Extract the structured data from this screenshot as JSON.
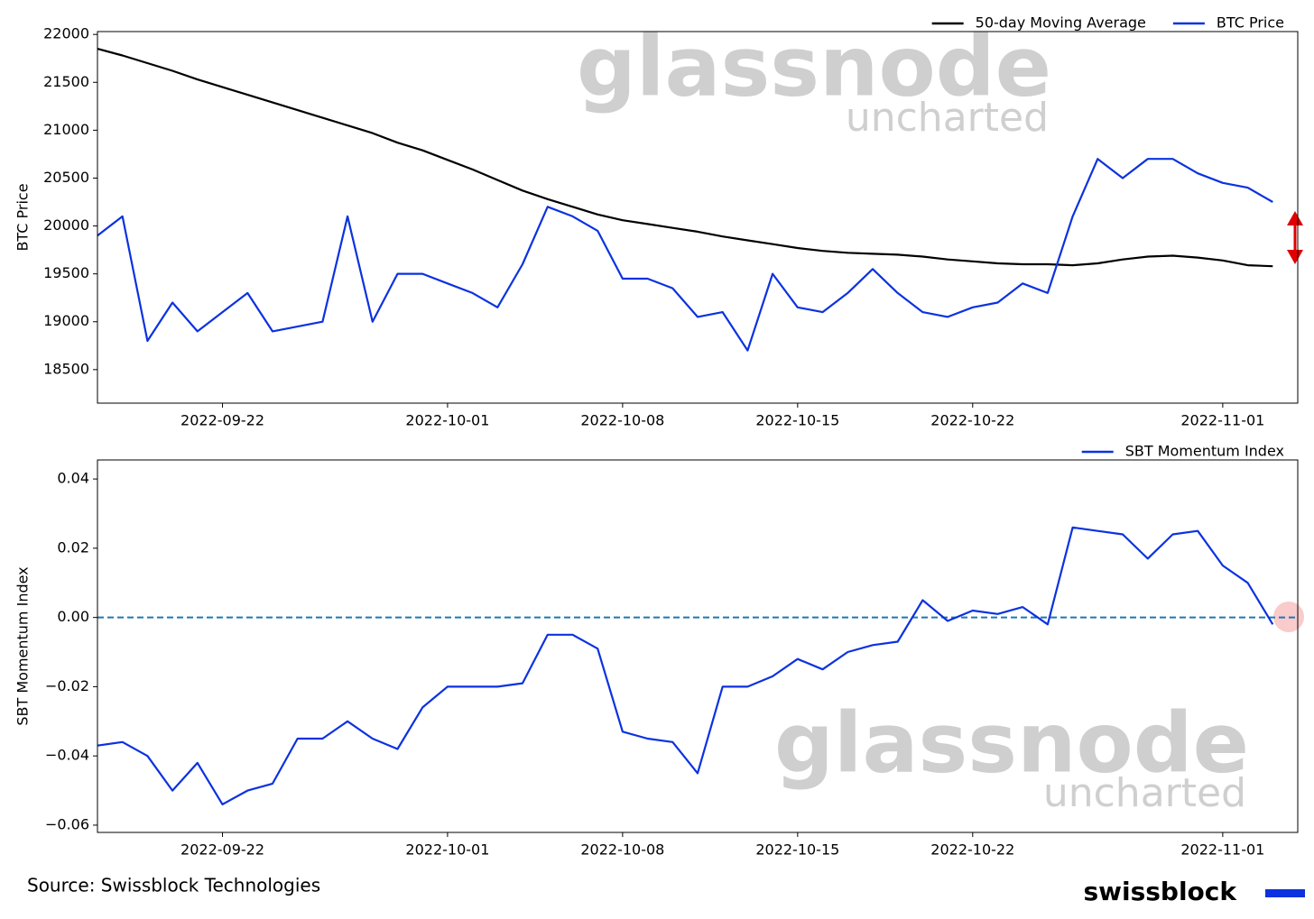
{
  "chart_data": [
    {
      "type": "line",
      "ylabel": "BTC Price",
      "watermark": {
        "brand": "glassnode",
        "sub": "uncharted"
      },
      "x": [
        "2022-09-17",
        "2022-09-18",
        "2022-09-19",
        "2022-09-20",
        "2022-09-21",
        "2022-09-22",
        "2022-09-23",
        "2022-09-24",
        "2022-09-25",
        "2022-09-26",
        "2022-09-27",
        "2022-09-28",
        "2022-09-29",
        "2022-09-30",
        "2022-10-01",
        "2022-10-02",
        "2022-10-03",
        "2022-10-04",
        "2022-10-05",
        "2022-10-06",
        "2022-10-07",
        "2022-10-08",
        "2022-10-09",
        "2022-10-10",
        "2022-10-11",
        "2022-10-12",
        "2022-10-13",
        "2022-10-14",
        "2022-10-15",
        "2022-10-16",
        "2022-10-17",
        "2022-10-18",
        "2022-10-19",
        "2022-10-20",
        "2022-10-21",
        "2022-10-22",
        "2022-10-23",
        "2022-10-24",
        "2022-10-25",
        "2022-10-26",
        "2022-10-27",
        "2022-10-28",
        "2022-10-29",
        "2022-10-30",
        "2022-10-31",
        "2022-11-01",
        "2022-11-02",
        "2022-11-03"
      ],
      "series": [
        {
          "name": "50-day Moving Average",
          "color": "#000000",
          "values": [
            21850,
            21780,
            21700,
            21620,
            21530,
            21450,
            21370,
            21290,
            21210,
            21130,
            21050,
            20970,
            20870,
            20790,
            20690,
            20590,
            20480,
            20370,
            20280,
            20200,
            20120,
            20060,
            20020,
            19980,
            19940,
            19890,
            19850,
            19810,
            19770,
            19740,
            19720,
            19710,
            19700,
            19680,
            19650,
            19630,
            19610,
            19600,
            19600,
            19590,
            19610,
            19650,
            19680,
            19690,
            19670,
            19640,
            19590,
            19580
          ]
        },
        {
          "name": "BTC Price",
          "color": "#0b32e0",
          "values": [
            19900,
            20100,
            18800,
            19200,
            18900,
            19100,
            19300,
            18900,
            18950,
            19000,
            20100,
            19000,
            19500,
            19500,
            19400,
            19300,
            19150,
            19600,
            20200,
            20100,
            19950,
            19450,
            19450,
            19350,
            19050,
            19100,
            18700,
            19500,
            19150,
            19100,
            19300,
            19550,
            19300,
            19100,
            19050,
            19150,
            19200,
            19400,
            19300,
            20100,
            20700,
            20500,
            20700,
            20700,
            20550,
            20450,
            20400,
            20250
          ]
        }
      ],
      "xlim": [
        "2022-09-17",
        "2022-11-04"
      ],
      "xticks": [
        "2022-09-22",
        "2022-10-01",
        "2022-10-08",
        "2022-10-15",
        "2022-10-22",
        "2022-11-01"
      ],
      "ylim": [
        18150,
        22030
      ],
      "yticks": [
        18500,
        19000,
        19500,
        20000,
        20500,
        21000,
        21500,
        22000
      ],
      "legend": "upper right"
    },
    {
      "type": "line",
      "ylabel": "SBT Momentum Index",
      "watermark": {
        "brand": "glassnode",
        "sub": "uncharted"
      },
      "x": [
        "2022-09-17",
        "2022-09-18",
        "2022-09-19",
        "2022-09-20",
        "2022-09-21",
        "2022-09-22",
        "2022-09-23",
        "2022-09-24",
        "2022-09-25",
        "2022-09-26",
        "2022-09-27",
        "2022-09-28",
        "2022-09-29",
        "2022-09-30",
        "2022-10-01",
        "2022-10-02",
        "2022-10-03",
        "2022-10-04",
        "2022-10-05",
        "2022-10-06",
        "2022-10-07",
        "2022-10-08",
        "2022-10-09",
        "2022-10-10",
        "2022-10-11",
        "2022-10-12",
        "2022-10-13",
        "2022-10-14",
        "2022-10-15",
        "2022-10-16",
        "2022-10-17",
        "2022-10-18",
        "2022-10-19",
        "2022-10-20",
        "2022-10-21",
        "2022-10-22",
        "2022-10-23",
        "2022-10-24",
        "2022-10-25",
        "2022-10-26",
        "2022-10-27",
        "2022-10-28",
        "2022-10-29",
        "2022-10-30",
        "2022-10-31",
        "2022-11-01",
        "2022-11-02",
        "2022-11-03"
      ],
      "series": [
        {
          "name": "SBT Momentum Index",
          "color": "#0b32e0",
          "values": [
            -0.037,
            -0.036,
            -0.04,
            -0.05,
            -0.042,
            -0.054,
            -0.05,
            -0.048,
            -0.035,
            -0.035,
            -0.03,
            -0.035,
            -0.038,
            -0.026,
            -0.02,
            -0.02,
            -0.02,
            -0.019,
            -0.005,
            -0.005,
            -0.009,
            -0.033,
            -0.035,
            -0.036,
            -0.045,
            -0.02,
            -0.02,
            -0.017,
            -0.012,
            -0.015,
            -0.01,
            -0.008,
            -0.007,
            0.005,
            -0.001,
            0.002,
            0.001,
            0.003,
            -0.002,
            0.026,
            0.025,
            0.024,
            0.017,
            0.024,
            0.025,
            0.015,
            0.01,
            -0.002
          ]
        }
      ],
      "xlim": [
        "2022-09-17",
        "2022-11-04"
      ],
      "xticks": [
        "2022-09-22",
        "2022-10-01",
        "2022-10-08",
        "2022-10-15",
        "2022-10-22",
        "2022-11-01"
      ],
      "ylim": [
        -0.0621,
        0.0455
      ],
      "yticks": [
        {
          "value": -0.06,
          "label": "−0.06"
        },
        {
          "value": -0.04,
          "label": "−0.04"
        },
        {
          "value": -0.02,
          "label": "−0.02"
        },
        {
          "value": 0,
          "label": "0.00"
        },
        0.02,
        0.04
      ],
      "hline": {
        "value": 0,
        "color": "#1f77b4",
        "dashed": true
      },
      "legend": "upper right"
    }
  ],
  "footer": {
    "source": "Source: Swissblock Technologies",
    "logo": "swissblock"
  }
}
